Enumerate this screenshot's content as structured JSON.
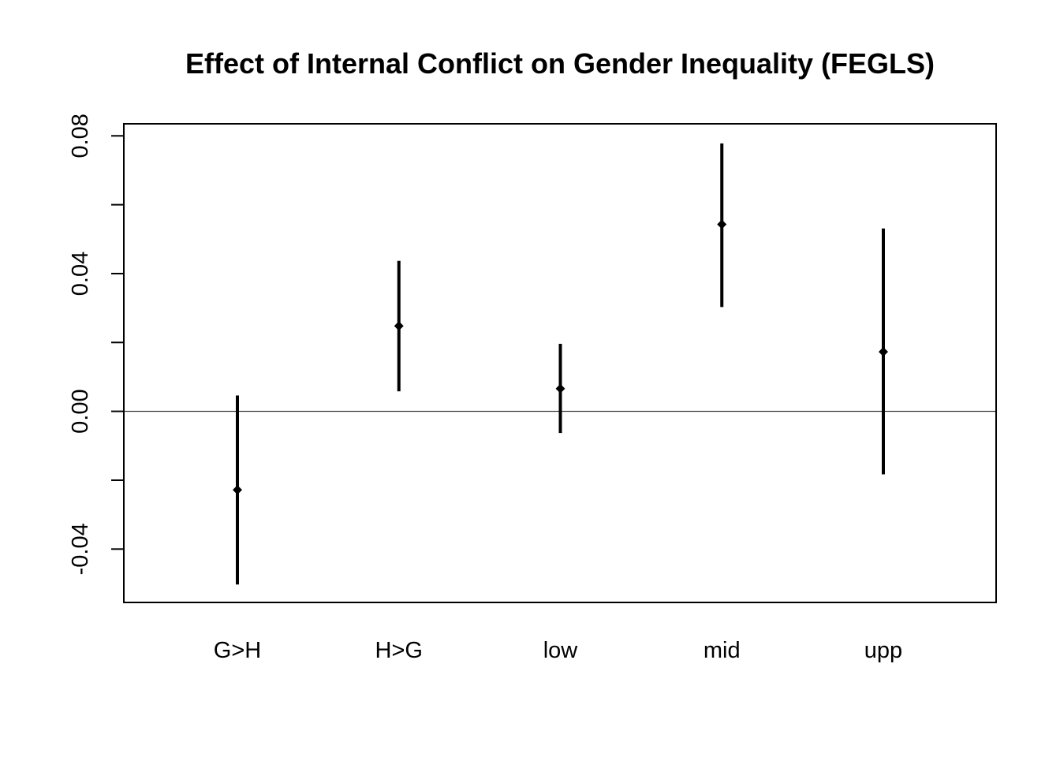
{
  "chart_data": {
    "type": "scatter",
    "title": "Effect of Internal Conflict on Gender Inequality (FEGLS)",
    "xlabel": "",
    "ylabel": "",
    "categories": [
      "G>H",
      "H>G",
      "low",
      "mid",
      "upp"
    ],
    "estimates": [
      -0.0228,
      0.0248,
      0.0066,
      0.0543,
      0.0173
    ],
    "ci_lower": [
      -0.0503,
      0.0058,
      -0.0063,
      0.0303,
      -0.0183
    ],
    "ci_upper": [
      0.0046,
      0.0437,
      0.0196,
      0.0778,
      0.0531
    ],
    "reference_line": 0,
    "ylim": [
      -0.0555,
      0.0835
    ],
    "yticks": [
      -0.04,
      -0.02,
      0.0,
      0.02,
      0.04,
      0.06,
      0.08
    ],
    "ytick_labels": [
      "-0.04",
      "",
      "0.00",
      "",
      "0.04",
      "",
      "0.08"
    ],
    "grid": false,
    "legend": "none",
    "color": "#000000"
  }
}
